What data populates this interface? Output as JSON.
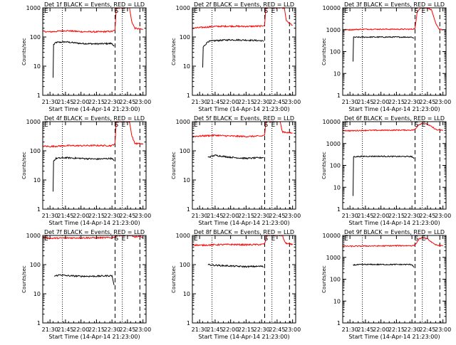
{
  "common": {
    "ylabel": "Counts/sec",
    "xlabel": "Start Time (14-Apr-14 21:23:00)",
    "x_ticks": [
      "21:30",
      "21:45",
      "22:00",
      "22:15",
      "22:30",
      "22:45",
      "23:00"
    ],
    "y_tick_labels": [
      "1",
      "10",
      "100",
      "1000",
      "10000"
    ],
    "markers": {
      "start": "S",
      "end": "E",
      "early": "E"
    },
    "colors": {
      "events": "#000000",
      "lld": "#ff0000",
      "axes": "#000000"
    }
  },
  "chart_data": [
    {
      "type": "line",
      "title": "Det 1f BLACK = Events, RED = LLD",
      "ylim": [
        1,
        1000
      ],
      "yscale": "log",
      "xlim": [
        "21:23",
        "23:03"
      ],
      "series": [
        {
          "name": "Events",
          "points": [
            [
              "21:33",
              4
            ],
            [
              "21:33.5",
              55
            ],
            [
              "21:36",
              65
            ],
            [
              "21:45",
              68
            ],
            [
              "22:00",
              60
            ],
            [
              "22:15",
              58
            ],
            [
              "22:30",
              60
            ],
            [
              "22:32",
              48
            ]
          ]
        },
        {
          "name": "LLD",
          "points": [
            [
              "21:23",
              155
            ],
            [
              "21:30",
              150
            ],
            [
              "21:45",
              165
            ],
            [
              "22:00",
              152
            ],
            [
              "22:15",
              150
            ],
            [
              "22:30",
              155
            ],
            [
              "22:33",
              170
            ],
            [
              "22:34",
              850
            ],
            [
              "22:36",
              1000
            ],
            [
              "22:47",
              1000
            ],
            [
              "22:49",
              350
            ],
            [
              "22:52",
              200
            ],
            [
              "23:00",
              180
            ]
          ]
        }
      ],
      "vlines_dotted": [
        "21:42",
        "22:40"
      ],
      "vlines_dashed": [
        "22:33",
        "22:57"
      ]
    },
    {
      "type": "line",
      "title": "Det 2f BLACK = Events, RED = LLD",
      "ylim": [
        1,
        1000
      ],
      "yscale": "log",
      "xlim": [
        "21:23",
        "23:03"
      ],
      "series": [
        {
          "name": "Events",
          "points": [
            [
              "21:33",
              9
            ],
            [
              "21:33.5",
              45
            ],
            [
              "21:38",
              70
            ],
            [
              "21:45",
              75
            ],
            [
              "22:00",
              80
            ],
            [
              "22:15",
              78
            ],
            [
              "22:30",
              75
            ],
            [
              "22:32",
              70
            ]
          ]
        },
        {
          "name": "LLD",
          "points": [
            [
              "21:23",
              200
            ],
            [
              "21:30",
              210
            ],
            [
              "21:45",
              230
            ],
            [
              "22:00",
              235
            ],
            [
              "22:15",
              230
            ],
            [
              "22:30",
              235
            ],
            [
              "22:33",
              260
            ],
            [
              "22:34",
              950
            ],
            [
              "22:36",
              1000
            ],
            [
              "22:52",
              1000
            ],
            [
              "22:54",
              350
            ],
            [
              "23:00",
              250
            ]
          ]
        }
      ],
      "vlines_dotted": [
        "21:42",
        "22:40"
      ],
      "vlines_dashed": [
        "22:33",
        "22:57"
      ]
    },
    {
      "type": "line",
      "title": "Det 3f BLACK = Events, RED = LLD",
      "ylim": [
        1,
        10000
      ],
      "yscale": "log",
      "xlim": [
        "21:23",
        "23:03"
      ],
      "series": [
        {
          "name": "Events",
          "points": [
            [
              "21:33",
              35
            ],
            [
              "21:33.5",
              450
            ],
            [
              "21:45",
              460
            ],
            [
              "22:00",
              460
            ],
            [
              "22:15",
              460
            ],
            [
              "22:30",
              460
            ],
            [
              "22:32",
              400
            ]
          ]
        },
        {
          "name": "LLD",
          "points": [
            [
              "21:23",
              1000
            ],
            [
              "21:30",
              1000
            ],
            [
              "21:45",
              1050
            ],
            [
              "22:00",
              1050
            ],
            [
              "22:15",
              1050
            ],
            [
              "22:30",
              1050
            ],
            [
              "22:33",
              1150
            ],
            [
              "22:35",
              6000
            ],
            [
              "22:38",
              10000
            ],
            [
              "22:45",
              10000
            ],
            [
              "22:49",
              8000
            ],
            [
              "22:53",
              2000
            ],
            [
              "22:56",
              1050
            ],
            [
              "23:00",
              1000
            ]
          ]
        }
      ],
      "vlines_dotted": [
        "21:42",
        "22:40"
      ],
      "vlines_dashed": [
        "22:33",
        "22:57"
      ]
    },
    {
      "type": "line",
      "title": "Det 4f BLACK = Events, RED = LLD",
      "ylim": [
        1,
        1000
      ],
      "yscale": "log",
      "xlim": [
        "21:23",
        "23:03"
      ],
      "series": [
        {
          "name": "Events",
          "points": [
            [
              "21:33",
              4
            ],
            [
              "21:33.5",
              45
            ],
            [
              "21:36",
              55
            ],
            [
              "21:45",
              58
            ],
            [
              "22:00",
              55
            ],
            [
              "22:15",
              52
            ],
            [
              "22:30",
              55
            ],
            [
              "22:32",
              45
            ]
          ]
        },
        {
          "name": "LLD",
          "points": [
            [
              "21:23",
              145
            ],
            [
              "21:30",
              140
            ],
            [
              "21:45",
              150
            ],
            [
              "22:00",
              150
            ],
            [
              "22:15",
              152
            ],
            [
              "22:30",
              150
            ],
            [
              "22:33",
              180
            ],
            [
              "22:34",
              900
            ],
            [
              "22:36",
              1000
            ],
            [
              "22:47",
              1000
            ],
            [
              "22:49",
              350
            ],
            [
              "22:52",
              180
            ],
            [
              "23:00",
              170
            ]
          ]
        }
      ],
      "vlines_dotted": [
        "21:42",
        "22:40"
      ],
      "vlines_dashed": [
        "22:33",
        "22:57"
      ]
    },
    {
      "type": "line",
      "title": "Det 5f BLACK = Events, RED = LLD",
      "ylim": [
        1,
        1000
      ],
      "yscale": "log",
      "xlim": [
        "21:23",
        "23:03"
      ],
      "series": [
        {
          "name": "Events",
          "points": [
            [
              "21:38",
              60
            ],
            [
              "21:45",
              70
            ],
            [
              "22:00",
              60
            ],
            [
              "22:15",
              55
            ],
            [
              "22:30",
              58
            ],
            [
              "22:32",
              60
            ]
          ]
        },
        {
          "name": "LLD",
          "points": [
            [
              "21:23",
              310
            ],
            [
              "21:30",
              320
            ],
            [
              "21:45",
              340
            ],
            [
              "22:00",
              320
            ],
            [
              "22:15",
              310
            ],
            [
              "22:30",
              320
            ],
            [
              "22:33",
              350
            ],
            [
              "22:34",
              900
            ],
            [
              "22:36",
              1000
            ],
            [
              "22:48",
              1000
            ],
            [
              "22:50",
              450
            ],
            [
              "23:00",
              400
            ]
          ]
        }
      ],
      "vlines_dotted": [
        "21:42",
        "22:40"
      ],
      "vlines_dashed": [
        "22:33",
        "22:57"
      ]
    },
    {
      "type": "line",
      "title": "Det 6f BLACK = Events, RED = LLD",
      "ylim": [
        1,
        10000
      ],
      "yscale": "log",
      "xlim": [
        "21:23",
        "23:03"
      ],
      "series": [
        {
          "name": "Events",
          "points": [
            [
              "21:33",
              4
            ],
            [
              "21:33.5",
              250
            ],
            [
              "21:45",
              260
            ],
            [
              "22:00",
              260
            ],
            [
              "22:15",
              255
            ],
            [
              "22:30",
              255
            ],
            [
              "22:32",
              200
            ]
          ]
        },
        {
          "name": "LLD",
          "points": [
            [
              "21:23",
              4000
            ],
            [
              "21:30",
              3800
            ],
            [
              "21:45",
              4000
            ],
            [
              "22:00",
              4000
            ],
            [
              "22:15",
              4100
            ],
            [
              "22:30",
              4100
            ],
            [
              "22:33",
              4300
            ],
            [
              "22:36",
              7000
            ],
            [
              "22:40",
              8500
            ],
            [
              "22:45",
              7500
            ],
            [
              "22:50",
              5500
            ],
            [
              "22:54",
              4200
            ],
            [
              "23:00",
              4000
            ]
          ]
        }
      ],
      "vlines_dotted": [
        "21:42",
        "22:40"
      ],
      "vlines_dashed": [
        "22:33",
        "22:57"
      ]
    },
    {
      "type": "line",
      "title": "Det 7f BLACK = Events, RED = LLD",
      "ylim": [
        1,
        1000
      ],
      "yscale": "log",
      "xlim": [
        "21:23",
        "23:03"
      ],
      "series": [
        {
          "name": "Events",
          "points": [
            [
              "21:34",
              40
            ],
            [
              "21:40",
              45
            ],
            [
              "21:45",
              42
            ],
            [
              "22:00",
              40
            ],
            [
              "22:15",
              40
            ],
            [
              "22:30",
              42
            ],
            [
              "22:32",
              20
            ]
          ]
        },
        {
          "name": "LLD",
          "points": [
            [
              "21:23",
              850
            ],
            [
              "21:30",
              800
            ],
            [
              "21:45",
              820
            ],
            [
              "22:00",
              830
            ],
            [
              "22:15",
              830
            ],
            [
              "22:30",
              840
            ],
            [
              "22:33",
              900
            ],
            [
              "22:35",
              1000
            ],
            [
              "22:48",
              1000
            ],
            [
              "22:50",
              900
            ],
            [
              "23:00",
              900
            ]
          ]
        }
      ],
      "vlines_dotted": [
        "21:42",
        "22:40"
      ],
      "vlines_dashed": [
        "22:33",
        "22:57"
      ]
    },
    {
      "type": "line",
      "title": "Det 8f BLACK = Events, RED = LLD",
      "ylim": [
        1,
        1000
      ],
      "yscale": "log",
      "xlim": [
        "21:23",
        "23:03"
      ],
      "series": [
        {
          "name": "Events",
          "points": [
            [
              "21:38",
              100
            ],
            [
              "21:45",
              95
            ],
            [
              "22:00",
              90
            ],
            [
              "22:15",
              85
            ],
            [
              "22:30",
              88
            ],
            [
              "22:32",
              85
            ]
          ]
        },
        {
          "name": "LLD",
          "points": [
            [
              "21:23",
              480
            ],
            [
              "21:30",
              460
            ],
            [
              "21:45",
              480
            ],
            [
              "22:00",
              490
            ],
            [
              "22:15",
              480
            ],
            [
              "22:30",
              490
            ],
            [
              "22:33",
              520
            ],
            [
              "22:35",
              1000
            ],
            [
              "22:50",
              1000
            ],
            [
              "22:53",
              550
            ],
            [
              "23:00",
              480
            ]
          ]
        }
      ],
      "vlines_dotted": [
        "21:42",
        "22:40"
      ],
      "vlines_dashed": [
        "22:33",
        "22:57"
      ]
    },
    {
      "type": "line",
      "title": "Det 9f BLACK = Events, RED = LLD",
      "ylim": [
        1,
        10000
      ],
      "yscale": "log",
      "xlim": [
        "21:23",
        "23:03"
      ],
      "series": [
        {
          "name": "Events",
          "points": [
            [
              "21:33",
              450
            ],
            [
              "21:45",
              470
            ],
            [
              "22:00",
              470
            ],
            [
              "22:15",
              470
            ],
            [
              "22:30",
              470
            ],
            [
              "22:32",
              350
            ]
          ]
        },
        {
          "name": "LLD",
          "points": [
            [
              "21:23",
              3300
            ],
            [
              "21:30",
              3200
            ],
            [
              "21:45",
              3300
            ],
            [
              "22:00",
              3300
            ],
            [
              "22:15",
              3400
            ],
            [
              "22:30",
              3400
            ],
            [
              "22:33",
              3600
            ],
            [
              "22:37",
              7000
            ],
            [
              "22:41",
              8000
            ],
            [
              "22:46",
              6500
            ],
            [
              "22:52",
              3800
            ],
            [
              "23:00",
              3300
            ]
          ]
        }
      ],
      "vlines_dotted": [
        "21:42",
        "22:40"
      ],
      "vlines_dashed": [
        "22:33",
        "22:57"
      ]
    }
  ]
}
